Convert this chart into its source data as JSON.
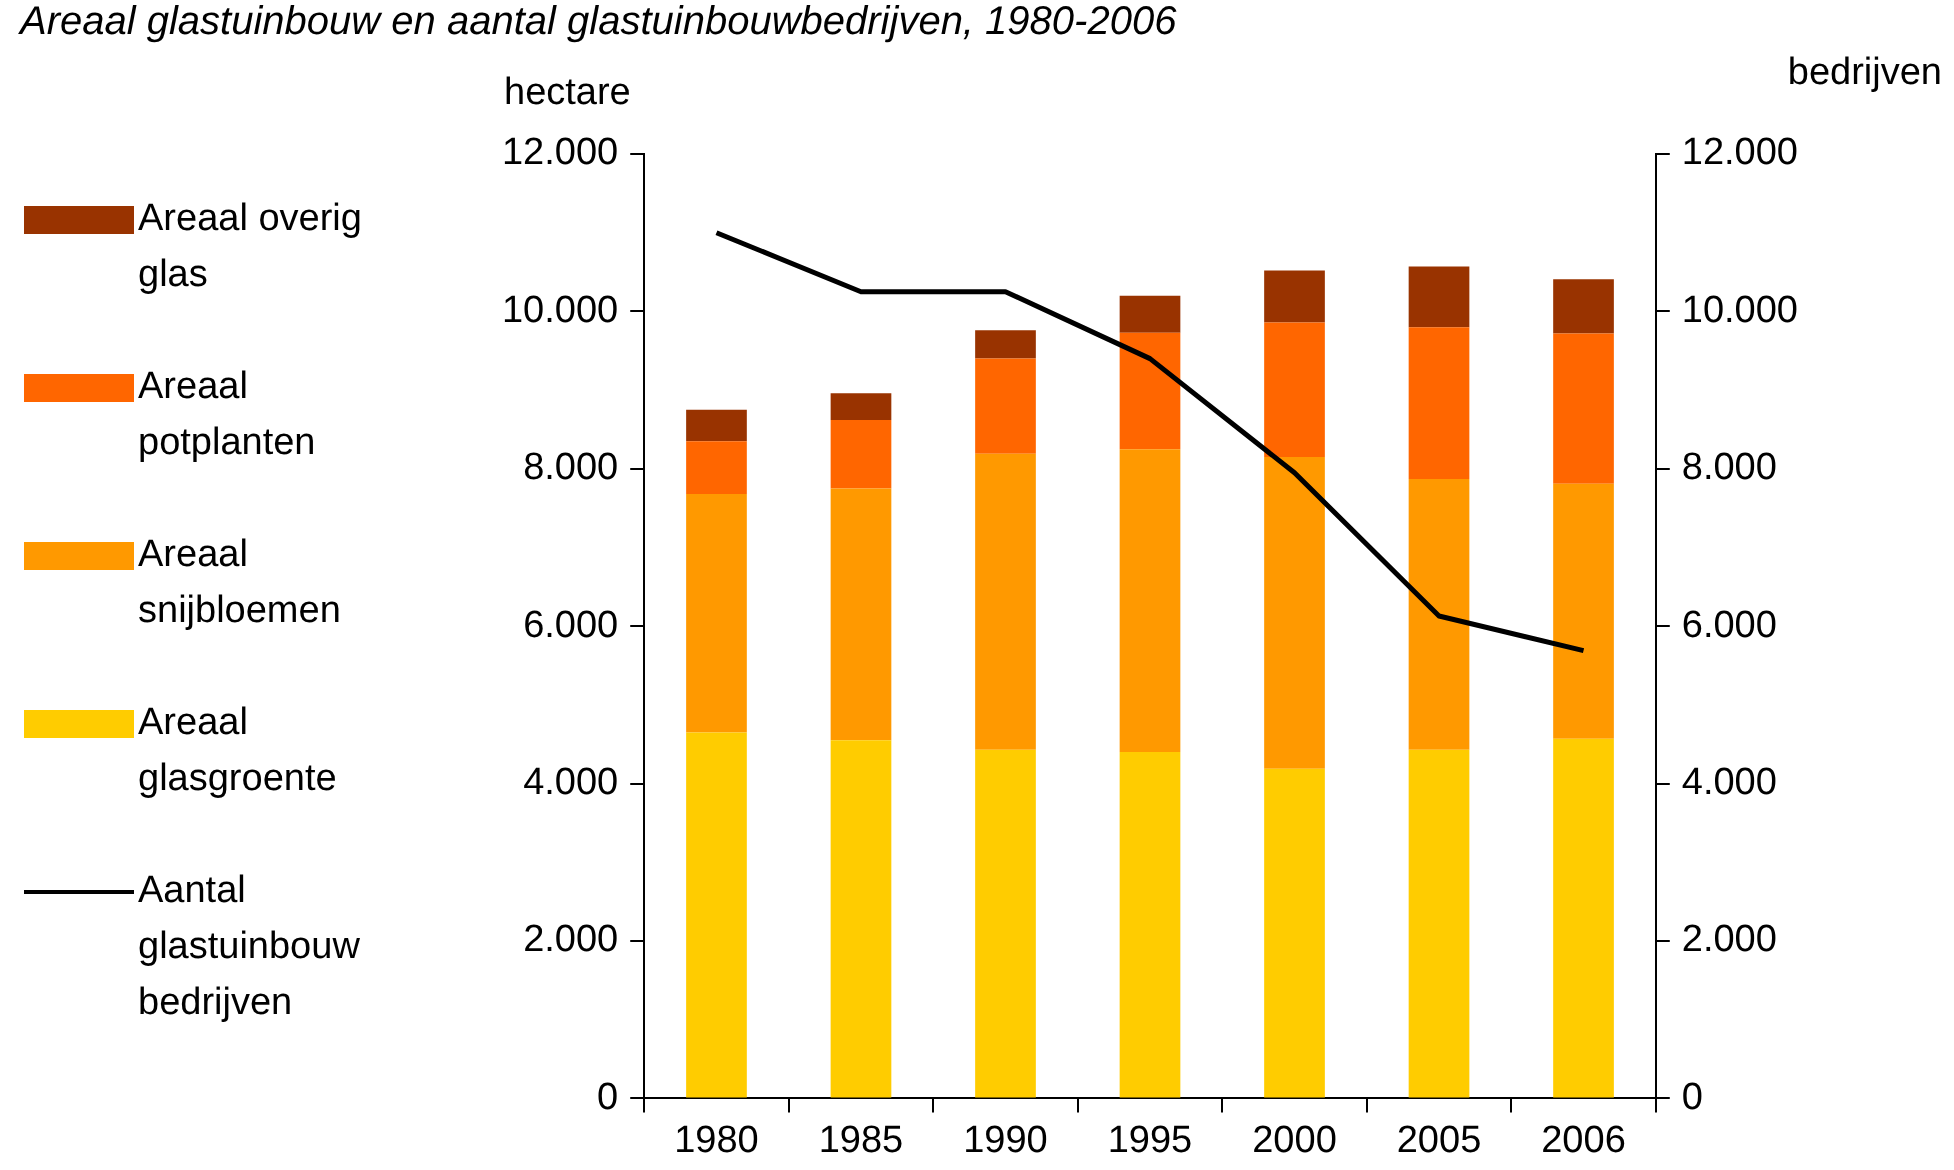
{
  "chart_data": {
    "type": "bar",
    "title": "Areaal glastuinbouw en aantal glastuinbouwbedrijven, 1980-2006",
    "ylabel": "hectare",
    "y2label": "bedrijven",
    "categories": [
      "1980",
      "1985",
      "1990",
      "1995",
      "2000",
      "2005",
      "2006"
    ],
    "stacked": true,
    "series": [
      {
        "name": "Areaal glasgroente",
        "color": "#ffcc00",
        "values": [
          4650,
          4550,
          4430,
          4400,
          4190,
          4430,
          4570
        ]
      },
      {
        "name": "Areaal snijbloemen",
        "color": "#ff9900",
        "values": [
          3030,
          3200,
          3760,
          3850,
          3960,
          3440,
          3240
        ]
      },
      {
        "name": "Areaal potplanten",
        "color": "#ff6600",
        "values": [
          670,
          870,
          1210,
          1480,
          1710,
          1930,
          1910
        ]
      },
      {
        "name": "Areaal overig glas",
        "color": "#993300",
        "values": [
          400,
          340,
          360,
          470,
          660,
          770,
          690
        ]
      },
      {
        "name": "Aantal glastuinbouw bedrijven",
        "type": "line",
        "axis": "y2",
        "color": "#000000",
        "values": [
          11000,
          10250,
          10250,
          9400,
          7950,
          6130,
          5690
        ]
      }
    ],
    "ylim": [
      0,
      12000
    ],
    "yticks": [
      {
        "value": 0,
        "label": "0"
      },
      {
        "value": 2000,
        "label": "2.000"
      },
      {
        "value": 4000,
        "label": "4.000"
      },
      {
        "value": 6000,
        "label": "6.000"
      },
      {
        "value": 8000,
        "label": "8.000"
      },
      {
        "value": 10000,
        "label": "10.000"
      },
      {
        "value": 12000,
        "label": "12.000"
      }
    ],
    "y2lim": [
      0,
      12000
    ],
    "y2ticks": [
      {
        "value": 0,
        "label": "0"
      },
      {
        "value": 2000,
        "label": "2.000"
      },
      {
        "value": 4000,
        "label": "4.000"
      },
      {
        "value": 6000,
        "label": "6.000"
      },
      {
        "value": 8000,
        "label": "8.000"
      },
      {
        "value": 10000,
        "label": "10.000"
      },
      {
        "value": 12000,
        "label": "12.000"
      }
    ],
    "grid": false,
    "legend": "left",
    "marker": "none"
  }
}
